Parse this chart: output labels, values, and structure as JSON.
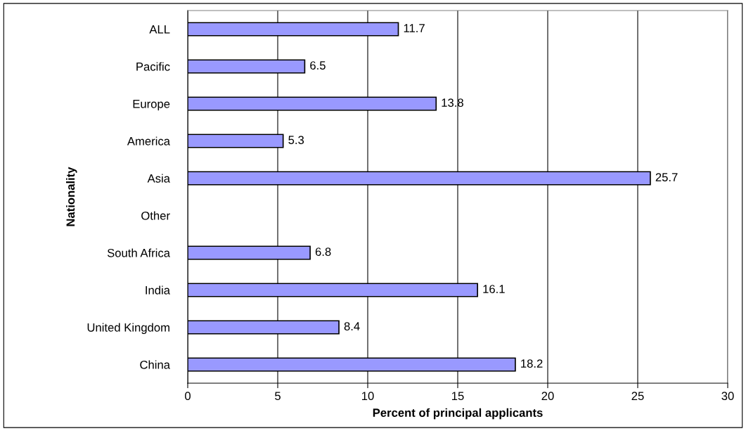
{
  "chart_data": {
    "type": "bar",
    "orientation": "horizontal",
    "categories": [
      "ALL",
      "Pacific",
      "Europe",
      "America",
      "Asia",
      "Other",
      "South Africa",
      "India",
      "United Kingdom",
      "China"
    ],
    "values": [
      11.7,
      6.5,
      13.8,
      5.3,
      25.7,
      null,
      6.8,
      16.1,
      8.4,
      18.2
    ],
    "color": "#9999ff",
    "xlabel": "Percent of principal applicants",
    "ylabel": "Nationality",
    "xlim": [
      0,
      30
    ],
    "xticks": [
      0,
      5,
      10,
      15,
      20,
      25,
      30
    ],
    "grid": "x",
    "data_labels": true,
    "legend": false
  }
}
